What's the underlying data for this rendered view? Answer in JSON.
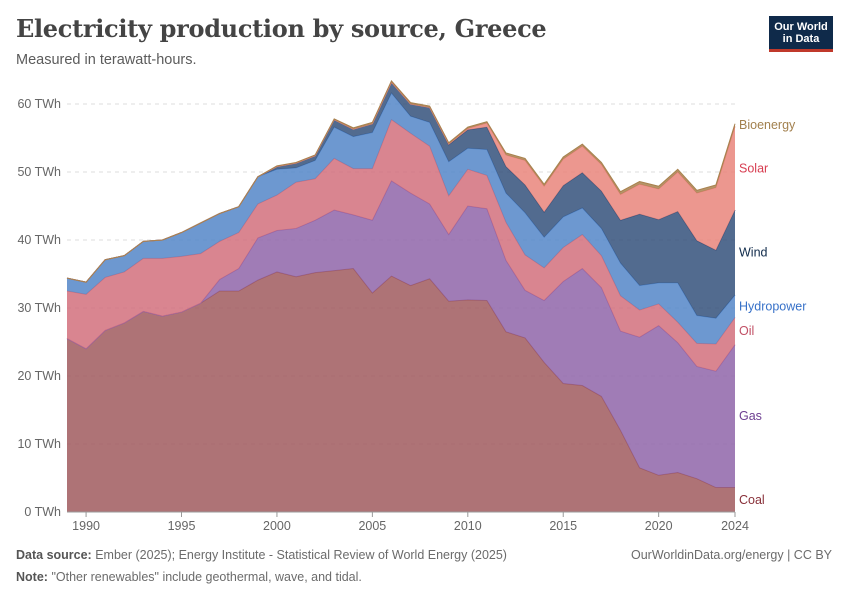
{
  "header": {
    "title": "Electricity production by source, Greece",
    "subtitle": "Measured in terawatt-hours.",
    "logo_line1": "Our World",
    "logo_line2": "in Data"
  },
  "footer": {
    "source_label": "Data source:",
    "source_text": "Ember (2025); Energy Institute - Statistical Review of World Energy (2025)",
    "note_label": "Note:",
    "note_text": "\"Other renewables\" include geothermal, wave, and tidal.",
    "credit": "OurWorldinData.org/energy | CC BY"
  },
  "chart_data": {
    "type": "area",
    "stacked": true,
    "title": "Electricity production by source, Greece",
    "subtitle": "Measured in terawatt-hours.",
    "ylabel": "",
    "xlabel": "",
    "ylim": [
      0,
      60
    ],
    "xlim": [
      1989,
      2024
    ],
    "y_ticks": [
      0,
      10,
      20,
      30,
      40,
      50,
      60
    ],
    "y_tick_labels": [
      "0 TWh",
      "10 TWh",
      "20 TWh",
      "30 TWh",
      "40 TWh",
      "50 TWh",
      "60 TWh"
    ],
    "x_ticks": [
      1990,
      1995,
      2000,
      2005,
      2010,
      2015,
      2020,
      2024
    ],
    "x_tick_labels": [
      "1990",
      "1995",
      "2000",
      "2005",
      "2010",
      "2015",
      "2020",
      "2024"
    ],
    "grid": true,
    "legend_placement": "right",
    "x": [
      1989,
      1990,
      1991,
      1992,
      1993,
      1994,
      1995,
      1996,
      1997,
      1998,
      1999,
      2000,
      2001,
      2002,
      2003,
      2004,
      2005,
      2006,
      2007,
      2008,
      2009,
      2010,
      2011,
      2012,
      2013,
      2014,
      2015,
      2016,
      2017,
      2018,
      2019,
      2020,
      2021,
      2022,
      2023,
      2024
    ],
    "series": [
      {
        "name": "Coal",
        "color": "#a05a5e",
        "label_color": "#883039",
        "values": [
          25.5,
          24,
          26.7,
          27.8,
          29.5,
          28.8,
          29.4,
          30.7,
          32.5,
          32.5,
          34.1,
          35.3,
          34.6,
          35.2,
          35.5,
          35.8,
          32.2,
          34.7,
          33.3,
          34.3,
          31,
          31.2,
          31.1,
          26.5,
          25.6,
          22,
          18.9,
          18.6,
          17,
          12,
          6.5,
          5.4,
          5.8,
          4.9,
          3.6,
          3.6
        ]
      },
      {
        "name": "Gas",
        "color": "#8f65a9",
        "label_color": "#6d3e91",
        "values": [
          0,
          0,
          0,
          0,
          0,
          0,
          0,
          0,
          1.7,
          3.3,
          6.2,
          6.1,
          7.1,
          7.7,
          8.9,
          7.9,
          10.7,
          14,
          13.6,
          11,
          9.8,
          13.8,
          13.5,
          10.5,
          7,
          9.1,
          15,
          17.2,
          16,
          14.6,
          19.2,
          22,
          19.1,
          16.5,
          17.1,
          21
        ]
      },
      {
        "name": "Oil",
        "color": "#d2707d",
        "label_color": "#c15065",
        "values": [
          7,
          8,
          7.8,
          7.5,
          7.8,
          8.5,
          8.2,
          7.3,
          5.6,
          5.3,
          5,
          5.2,
          6.8,
          6.1,
          7.6,
          6.8,
          7.6,
          9,
          8.8,
          8.5,
          5.7,
          5.4,
          4.9,
          5.6,
          5.2,
          4.8,
          5,
          5,
          4.7,
          5.2,
          4,
          3.2,
          3,
          3.4,
          4,
          4
        ]
      },
      {
        "name": "Hydropower",
        "color": "#5486c8",
        "label_color": "#3771c8",
        "values": [
          1.9,
          1.8,
          2.6,
          2.4,
          2.5,
          2.7,
          3.5,
          4.5,
          4.1,
          3.8,
          4,
          3.8,
          2.1,
          2.7,
          4.6,
          4.7,
          5.3,
          3.9,
          2.5,
          3.5,
          5,
          3.1,
          3.8,
          4.3,
          6.2,
          4.5,
          4.5,
          3.9,
          4,
          4.8,
          3.6,
          3.1,
          5.8,
          4.1,
          3.8,
          3.3
        ]
      },
      {
        "name": "Wind",
        "color": "#34517b",
        "label_color": "#0f2a4a",
        "values": [
          0,
          0,
          0,
          0,
          0,
          0,
          0,
          0,
          0,
          0,
          0,
          0.4,
          0.7,
          0.7,
          1.1,
          1.1,
          1.3,
          1.6,
          1.8,
          2.2,
          2.5,
          2.7,
          3.3,
          3.9,
          4.1,
          3.7,
          4.6,
          5.2,
          5.5,
          6.3,
          10.5,
          9.3,
          10.5,
          11,
          10,
          12.5
        ]
      },
      {
        "name": "Solar",
        "color": "#e9857b",
        "label_color": "#d73c50",
        "values": [
          0,
          0,
          0,
          0,
          0,
          0,
          0,
          0,
          0,
          0,
          0,
          0,
          0,
          0,
          0,
          0,
          0,
          0,
          0,
          0,
          0.1,
          0.2,
          0.6,
          1.7,
          3.6,
          3.8,
          3.9,
          3.9,
          3.9,
          3.8,
          4.4,
          4.5,
          5.8,
          7,
          9.2,
          12.3
        ]
      },
      {
        "name": "Bioenergy",
        "color": "#a8814e",
        "label_color": "#a2804e",
        "values": [
          0,
          0,
          0,
          0,
          0,
          0,
          0,
          0,
          0,
          0,
          0,
          0.1,
          0.1,
          0.1,
          0.1,
          0.2,
          0.2,
          0.2,
          0.2,
          0.2,
          0.2,
          0.2,
          0.2,
          0.3,
          0.3,
          0.3,
          0.3,
          0.3,
          0.3,
          0.4,
          0.4,
          0.4,
          0.4,
          0.4,
          0.4,
          0.4
        ]
      }
    ]
  }
}
